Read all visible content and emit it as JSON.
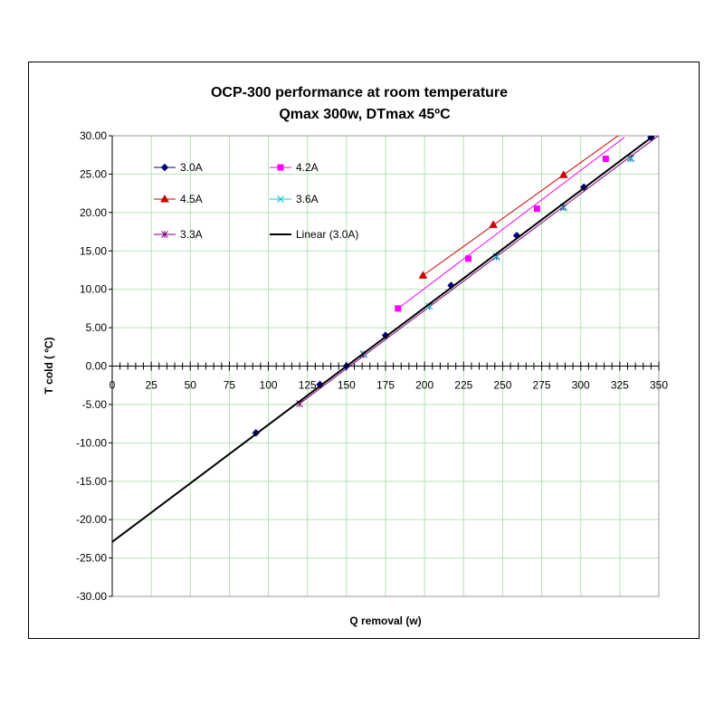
{
  "chart_data": {
    "type": "scatter",
    "title_lines": [
      "OCP-300 performance at room temperature",
      "Qmax 300w, DTmax 45ºC"
    ],
    "xlabel": "Q removal (w)",
    "ylabel": "T cold ( ºC)",
    "xlim": [
      0,
      350
    ],
    "ylim": [
      -30,
      30
    ],
    "x_ticks": [
      0,
      25,
      50,
      75,
      100,
      125,
      150,
      175,
      200,
      225,
      250,
      275,
      300,
      325,
      350
    ],
    "y_ticks": [
      30,
      25,
      20,
      15,
      10,
      5,
      0,
      -5,
      -10,
      -15,
      -20,
      -25,
      -30
    ],
    "y_tick_labels": [
      "30.00",
      "25.00",
      "20.00",
      "15.00",
      "10.00",
      "5.00",
      "0.00",
      "-5.00",
      "-10.00",
      "-15.00",
      "-20.00",
      "-25.00",
      "-30.00"
    ],
    "grid": true,
    "legend_position": "top-left",
    "series": [
      {
        "name": "3.0A",
        "color": "#000080",
        "marker": "diamond",
        "x": [
          92,
          133,
          150,
          175,
          217,
          259,
          302,
          345
        ],
        "y": [
          -8.7,
          -2.4,
          0,
          4.0,
          10.5,
          17.0,
          23.3,
          29.8
        ],
        "line": [
          [
            0,
            -22.9
          ],
          [
            350,
            30.5
          ]
        ]
      },
      {
        "name": "4.2A",
        "color": "#ff00ff",
        "marker": "square",
        "x": [
          183,
          228,
          272,
          316
        ],
        "y": [
          7.5,
          14.0,
          20.5,
          27.0
        ],
        "line": [
          [
            183,
            7.5
          ],
          [
            328,
            29.8
          ]
        ]
      },
      {
        "name": "4.5A",
        "color": "#cc0000",
        "marker": "triangle",
        "x": [
          199,
          244,
          289
        ],
        "y": [
          11.8,
          18.4,
          24.9
        ],
        "line": [
          [
            199,
            11.8
          ],
          [
            326,
            30.3
          ]
        ]
      },
      {
        "name": "3.6A",
        "color": "#00cccc",
        "marker": "x",
        "x": [
          161,
          203,
          246,
          289,
          332
        ],
        "y": [
          1.6,
          7.8,
          14.2,
          20.6,
          27.0
        ],
        "line": [
          [
            120,
            -4.6
          ],
          [
            350,
            30.5
          ]
        ]
      },
      {
        "name": "3.3A",
        "color": "#800080",
        "marker": "star",
        "x": [
          120,
          161,
          203,
          246,
          289,
          332
        ],
        "y": [
          -4.9,
          1.5,
          7.8,
          14.3,
          20.7,
          27.1
        ],
        "line": [
          [
            120,
            -4.9
          ],
          [
            351,
            30.2
          ]
        ]
      },
      {
        "name": "Linear (3.0A)",
        "color": "#000000",
        "marker": "none",
        "x": [
          0,
          350
        ],
        "y": [
          -22.9,
          30.5
        ],
        "line": [
          [
            0,
            -22.9
          ],
          [
            350,
            30.5
          ]
        ]
      }
    ]
  }
}
